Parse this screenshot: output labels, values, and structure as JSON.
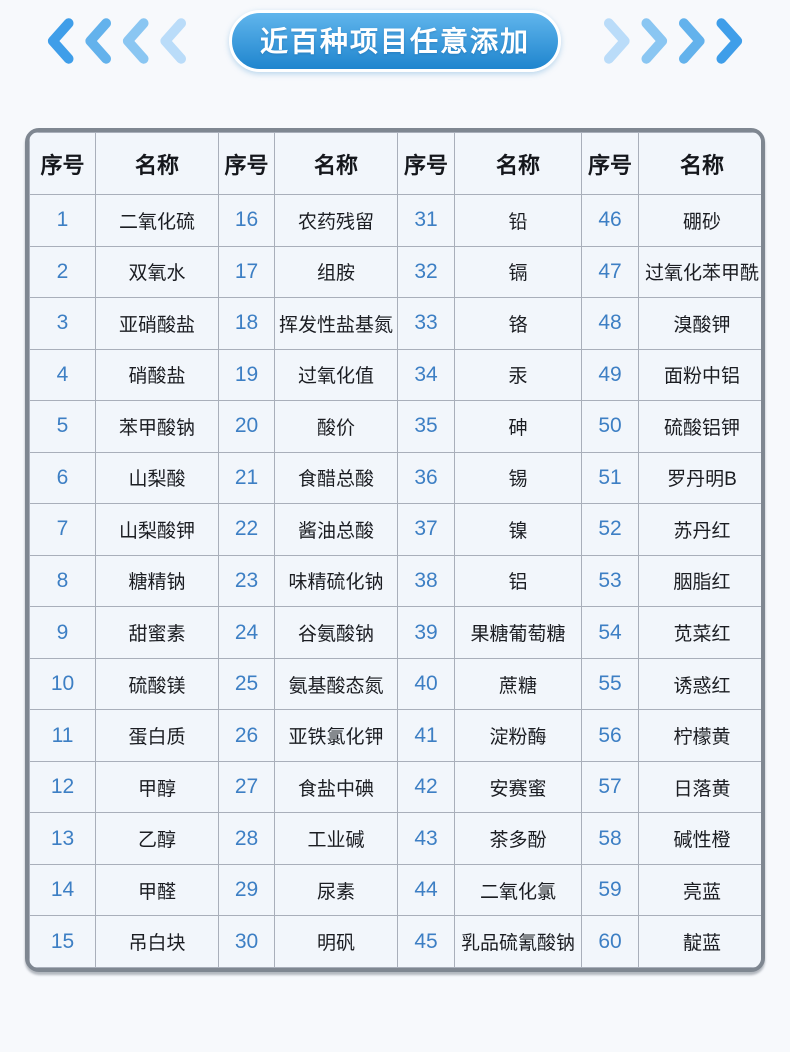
{
  "banner": {
    "title": "近百种项目任意添加",
    "pill_gradient_top": "#60b5ec",
    "pill_gradient_bottom": "#1f85ce",
    "chevron_colors": [
      "#3f9ee9",
      "#63b2ec",
      "#8ac6f2",
      "#badcf9"
    ]
  },
  "table": {
    "serial_header": "序号",
    "name_header": "名称",
    "number_color": "#3d7fc4",
    "groups": [
      {
        "items": [
          {
            "no": "1",
            "name": "二氧化硫"
          },
          {
            "no": "2",
            "name": "双氧水"
          },
          {
            "no": "3",
            "name": "亚硝酸盐"
          },
          {
            "no": "4",
            "name": "硝酸盐"
          },
          {
            "no": "5",
            "name": "苯甲酸钠"
          },
          {
            "no": "6",
            "name": "山梨酸"
          },
          {
            "no": "7",
            "name": "山梨酸钾"
          },
          {
            "no": "8",
            "name": "糖精钠"
          },
          {
            "no": "9",
            "name": "甜蜜素"
          },
          {
            "no": "10",
            "name": "硫酸镁"
          },
          {
            "no": "11",
            "name": "蛋白质"
          },
          {
            "no": "12",
            "name": "甲醇"
          },
          {
            "no": "13",
            "name": "乙醇"
          },
          {
            "no": "14",
            "name": "甲醛"
          },
          {
            "no": "15",
            "name": "吊白块"
          }
        ]
      },
      {
        "items": [
          {
            "no": "16",
            "name": "农药残留"
          },
          {
            "no": "17",
            "name": "组胺"
          },
          {
            "no": "18",
            "name": "挥发性盐基氮"
          },
          {
            "no": "19",
            "name": "过氧化值"
          },
          {
            "no": "20",
            "name": "酸价"
          },
          {
            "no": "21",
            "name": "食醋总酸"
          },
          {
            "no": "22",
            "name": "酱油总酸"
          },
          {
            "no": "23",
            "name": "味精硫化钠"
          },
          {
            "no": "24",
            "name": "谷氨酸钠"
          },
          {
            "no": "25",
            "name": "氨基酸态氮"
          },
          {
            "no": "26",
            "name": "亚铁氯化钾"
          },
          {
            "no": "27",
            "name": "食盐中碘"
          },
          {
            "no": "28",
            "name": "工业碱"
          },
          {
            "no": "29",
            "name": "尿素"
          },
          {
            "no": "30",
            "name": "明矾"
          }
        ]
      },
      {
        "items": [
          {
            "no": "31",
            "name": "铅"
          },
          {
            "no": "32",
            "name": "镉"
          },
          {
            "no": "33",
            "name": "铬"
          },
          {
            "no": "34",
            "name": "汞"
          },
          {
            "no": "35",
            "name": "砷"
          },
          {
            "no": "36",
            "name": "锡"
          },
          {
            "no": "37",
            "name": "镍"
          },
          {
            "no": "38",
            "name": "铝"
          },
          {
            "no": "39",
            "name": "果糖葡萄糖"
          },
          {
            "no": "40",
            "name": "蔗糖"
          },
          {
            "no": "41",
            "name": "淀粉酶"
          },
          {
            "no": "42",
            "name": "安赛蜜"
          },
          {
            "no": "43",
            "name": "茶多酚"
          },
          {
            "no": "44",
            "name": "二氧化氯"
          },
          {
            "no": "45",
            "name": "乳品硫氰酸钠"
          }
        ]
      },
      {
        "items": [
          {
            "no": "46",
            "name": "硼砂"
          },
          {
            "no": "47",
            "name": "过氧化苯甲酰"
          },
          {
            "no": "48",
            "name": "溴酸钾"
          },
          {
            "no": "49",
            "name": "面粉中铝"
          },
          {
            "no": "50",
            "name": "硫酸铝钾"
          },
          {
            "no": "51",
            "name": "罗丹明B"
          },
          {
            "no": "52",
            "name": "苏丹红"
          },
          {
            "no": "53",
            "name": "胭脂红"
          },
          {
            "no": "54",
            "name": "苋菜红"
          },
          {
            "no": "55",
            "name": "诱惑红"
          },
          {
            "no": "56",
            "name": "柠檬黄"
          },
          {
            "no": "57",
            "name": "日落黄"
          },
          {
            "no": "58",
            "name": "碱性橙"
          },
          {
            "no": "59",
            "name": "亮蓝"
          },
          {
            "no": "60",
            "name": "靛蓝"
          }
        ]
      }
    ]
  }
}
